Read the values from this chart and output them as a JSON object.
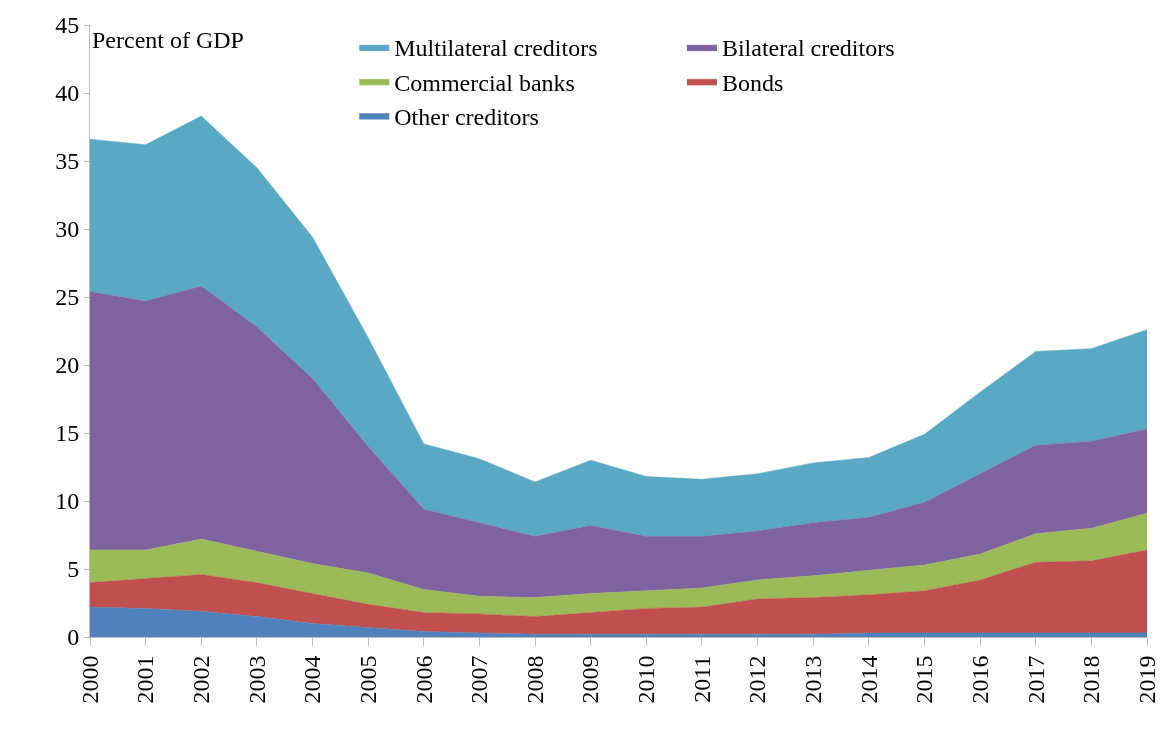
{
  "chart_data": {
    "type": "area",
    "stacked": true,
    "ylabel": "Percent of GDP",
    "categories": [
      "2000",
      "2001",
      "2002",
      "2003",
      "2004",
      "2005",
      "2006",
      "2007",
      "2008",
      "2009",
      "2010",
      "2011",
      "2012",
      "2013",
      "2014",
      "2015",
      "2016",
      "2017",
      "2018",
      "2019"
    ],
    "series": [
      {
        "name": "Other creditors",
        "color": "#4f81bd",
        "values": [
          2.2,
          2.1,
          1.9,
          1.5,
          1.0,
          0.7,
          0.4,
          0.3,
          0.2,
          0.2,
          0.2,
          0.2,
          0.2,
          0.2,
          0.3,
          0.3,
          0.3,
          0.3,
          0.3,
          0.3
        ]
      },
      {
        "name": "Bonds",
        "color": "#c0504d",
        "values": [
          1.8,
          2.2,
          2.7,
          2.5,
          2.2,
          1.7,
          1.4,
          1.4,
          1.3,
          1.6,
          1.9,
          2.0,
          2.6,
          2.7,
          2.8,
          3.1,
          3.9,
          5.2,
          5.3,
          6.1
        ]
      },
      {
        "name": "Commercial banks",
        "color": "#9bbb59",
        "values": [
          2.4,
          2.1,
          2.6,
          2.3,
          2.2,
          2.3,
          1.7,
          1.3,
          1.4,
          1.4,
          1.3,
          1.4,
          1.4,
          1.6,
          1.8,
          1.9,
          1.9,
          2.1,
          2.4,
          2.7
        ]
      },
      {
        "name": "Bilateral creditors",
        "color": "#7f63a0",
        "values": [
          19.0,
          18.3,
          18.6,
          16.5,
          13.6,
          9.3,
          5.9,
          5.4,
          4.5,
          5.0,
          4.0,
          3.8,
          3.6,
          3.9,
          3.9,
          4.6,
          5.9,
          6.5,
          6.4,
          6.2
        ]
      },
      {
        "name": "Multilateral creditors",
        "color": "#5aa9c4",
        "values": [
          11.2,
          11.5,
          12.5,
          11.7,
          10.4,
          8.0,
          4.8,
          4.7,
          4.0,
          4.8,
          4.4,
          4.2,
          4.2,
          4.4,
          4.4,
          5.0,
          6.0,
          6.9,
          6.8,
          7.3
        ]
      }
    ],
    "ylim": [
      0,
      45
    ],
    "yticks": [
      0,
      5,
      10,
      15,
      20,
      25,
      30,
      35,
      40,
      45
    ],
    "grid": false,
    "legend": "top"
  }
}
